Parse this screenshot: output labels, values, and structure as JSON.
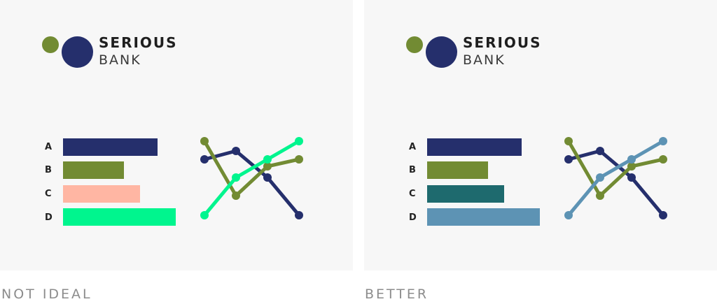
{
  "colors": {
    "navy": "#252f6c",
    "olive": "#728b33",
    "salmon": "#ffb6a3",
    "bright_green": "#00f58e",
    "teal": "#1e6a6e",
    "steel_blue": "#5d93b4",
    "panel_background": "#f7f7f7",
    "caption_text": "#8c8c8c"
  },
  "logo": {
    "line1": "SERIOUS",
    "line2": "BANK",
    "small_dot_color": "#728b33",
    "big_dot_color": "#252f6c"
  },
  "captions": {
    "left": "NOT IDEAL",
    "right": "BETTER"
  },
  "chart_data": [
    {
      "panel": "not ideal",
      "type": "bar",
      "orientation": "horizontal",
      "categories": [
        "A",
        "B",
        "C",
        "D"
      ],
      "values": [
        135,
        87,
        110,
        161
      ],
      "colors": [
        "#252f6c",
        "#728b33",
        "#ffb6a3",
        "#00f58e"
      ],
      "title": "",
      "xlabel": "",
      "ylabel": "",
      "xlim": [
        0,
        161
      ],
      "grid": false
    },
    {
      "panel": "not ideal",
      "type": "line",
      "x": [
        1,
        2,
        3,
        4
      ],
      "series": [
        {
          "values": [
            67,
            73,
            54,
            27
          ],
          "color": "#252f6c"
        },
        {
          "values": [
            80,
            41,
            62,
            67
          ],
          "color": "#728b33"
        },
        {
          "values": [
            27,
            54,
            67,
            80
          ],
          "color": "#00f58e"
        }
      ],
      "ylim": [
        27,
        80
      ],
      "axes": false,
      "grid": false
    },
    {
      "panel": "better",
      "type": "bar",
      "orientation": "horizontal",
      "categories": [
        "A",
        "B",
        "C",
        "D"
      ],
      "values": [
        135,
        87,
        110,
        161
      ],
      "colors": [
        "#252f6c",
        "#728b33",
        "#1e6a6e",
        "#5d93b4"
      ],
      "title": "",
      "xlabel": "",
      "ylabel": "",
      "xlim": [
        0,
        161
      ],
      "grid": false
    },
    {
      "panel": "better",
      "type": "line",
      "x": [
        1,
        2,
        3,
        4
      ],
      "series": [
        {
          "values": [
            67,
            73,
            54,
            27
          ],
          "color": "#252f6c"
        },
        {
          "values": [
            80,
            41,
            62,
            67
          ],
          "color": "#728b33"
        },
        {
          "values": [
            27,
            54,
            67,
            80
          ],
          "color": "#5d93b4"
        }
      ],
      "ylim": [
        27,
        80
      ],
      "axes": false,
      "grid": false
    }
  ]
}
